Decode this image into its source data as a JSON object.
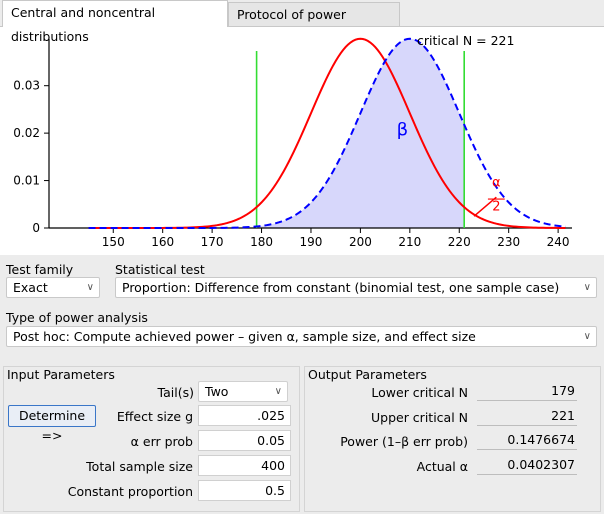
{
  "tabs": {
    "distributions": "Central and noncentral distributions",
    "protocol": "Protocol of power analyses"
  },
  "plot": {
    "critical_label": "critical N = 221",
    "beta_label": "β",
    "alpha_num": "α",
    "alpha_den": "2",
    "colors": {
      "central": "#ff0000",
      "noncentral": "#0000ff",
      "beta_fill": "#d7d7fb",
      "critical": "#33dd33"
    }
  },
  "chart_data": {
    "type": "line",
    "x_ticks": [
      150,
      160,
      170,
      180,
      190,
      200,
      210,
      220,
      230,
      240
    ],
    "y_ticks": [
      "0",
      "0.01",
      "0.02",
      "0.03"
    ],
    "xlim": [
      137,
      242
    ],
    "ylim": [
      0,
      0.039
    ],
    "critical_values": [
      179,
      221
    ],
    "series": [
      {
        "style": "solid-red",
        "mean": 200,
        "sd": 10
      },
      {
        "style": "dashed-blue",
        "mean": 210,
        "sd": 10
      }
    ]
  },
  "test_family": {
    "label": "Test family",
    "value": "Exact"
  },
  "statistical_test": {
    "label": "Statistical test",
    "value": "Proportion: Difference from constant (binomial test, one sample case)"
  },
  "type_of_power": {
    "label": "Type of power analysis",
    "value": "Post hoc: Compute achieved power – given α, sample size, and effect size"
  },
  "input": {
    "title": "Input Parameters",
    "tails_label": "Tail(s)",
    "tails_value": "Two",
    "determine_label": "Determine =>",
    "effect_label": "Effect size g",
    "effect_value": ".025",
    "alpha_label": "α err prob",
    "alpha_value": "0.05",
    "n_label": "Total sample size",
    "n_value": "400",
    "prop_label": "Constant proportion",
    "prop_value": "0.5"
  },
  "output": {
    "title": "Output Parameters",
    "lower_label": "Lower critical N",
    "lower_value": "179",
    "upper_label": "Upper critical N",
    "upper_value": "221",
    "power_label": "Power (1–β err prob)",
    "power_value": "0.1476674",
    "actual_label": "Actual α",
    "actual_value": "0.0402307"
  }
}
